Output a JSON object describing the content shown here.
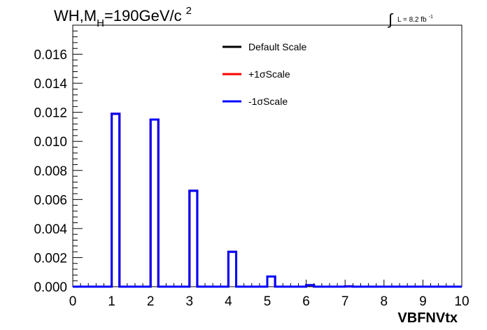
{
  "chart_data": {
    "type": "histogram",
    "title": {
      "prefix": "WH,M",
      "subscript": "H",
      "rest": "=190GeV/c",
      "superscript": "2"
    },
    "lumi": {
      "symbol": "∫",
      "text": "L = 8.2 fb",
      "superscript": "-1"
    },
    "xlabel": "VBFNVtx",
    "ylabel": "",
    "xlim": [
      0,
      10
    ],
    "ylim": [
      0,
      0.018
    ],
    "x_ticks": [
      "0",
      "1",
      "2",
      "3",
      "4",
      "5",
      "6",
      "7",
      "8",
      "9",
      "10"
    ],
    "y_ticks": [
      "0.000",
      "0.002",
      "0.004",
      "0.006",
      "0.008",
      "0.010",
      "0.012",
      "0.014",
      "0.016"
    ],
    "bin_width": 0.2,
    "bins_low_edges": [
      0.0,
      0.2,
      0.4,
      0.6,
      0.8,
      1.0,
      1.2,
      1.4,
      1.6,
      1.8,
      2.0,
      2.2,
      2.4,
      2.6,
      2.8,
      3.0,
      3.2,
      3.4,
      3.6,
      3.8,
      4.0,
      4.2,
      4.4,
      4.6,
      4.8,
      5.0,
      5.2,
      5.4,
      5.6,
      5.8,
      6.0,
      6.2,
      6.4,
      6.6,
      6.8,
      7.0,
      7.2,
      7.4,
      7.6,
      7.8,
      8.0,
      8.2,
      8.4,
      8.6,
      8.8,
      9.0,
      9.2,
      9.4,
      9.6,
      9.8
    ],
    "series": [
      {
        "name": "Default Scale",
        "color": "#000000",
        "values": [
          0,
          0,
          0,
          0,
          0,
          0.0119,
          0,
          0,
          0,
          0,
          0.0115,
          0,
          0,
          0,
          0,
          0.0066,
          0,
          0,
          0,
          0,
          0.0024,
          0,
          0,
          0,
          0,
          0.0007,
          0,
          0,
          0,
          0,
          0.0001,
          0,
          0,
          0,
          0,
          2e-05,
          0,
          0,
          0,
          0,
          0,
          0,
          0,
          0,
          0,
          0,
          0,
          0,
          0,
          0
        ]
      },
      {
        "name": "+1σScale",
        "color": "#ff0000",
        "values": [
          0,
          0,
          0,
          0,
          0,
          0.0119,
          0,
          0,
          0,
          0,
          0.0115,
          0,
          0,
          0,
          0,
          0.0066,
          0,
          0,
          0,
          0,
          0.0024,
          0,
          0,
          0,
          0,
          0.0007,
          0,
          0,
          0,
          0,
          0.0001,
          0,
          0,
          0,
          0,
          2e-05,
          0,
          0,
          0,
          0,
          0,
          0,
          0,
          0,
          0,
          0,
          0,
          0,
          0,
          0
        ]
      },
      {
        "name": "-1σScale",
        "color": "#0000ff",
        "values": [
          0,
          0,
          0,
          0,
          0,
          0.0119,
          0,
          0,
          0,
          0,
          0.0115,
          0,
          0,
          0,
          0,
          0.0066,
          0,
          0,
          0,
          0,
          0.0024,
          0,
          0,
          0,
          0,
          0.0007,
          0,
          0,
          0,
          0,
          0.0001,
          0,
          0,
          0,
          0,
          2e-05,
          0,
          0,
          0,
          0,
          0,
          0,
          0,
          0,
          0,
          0,
          0,
          0,
          0,
          0
        ]
      }
    ],
    "legend_position": "top-center",
    "grid": false
  }
}
